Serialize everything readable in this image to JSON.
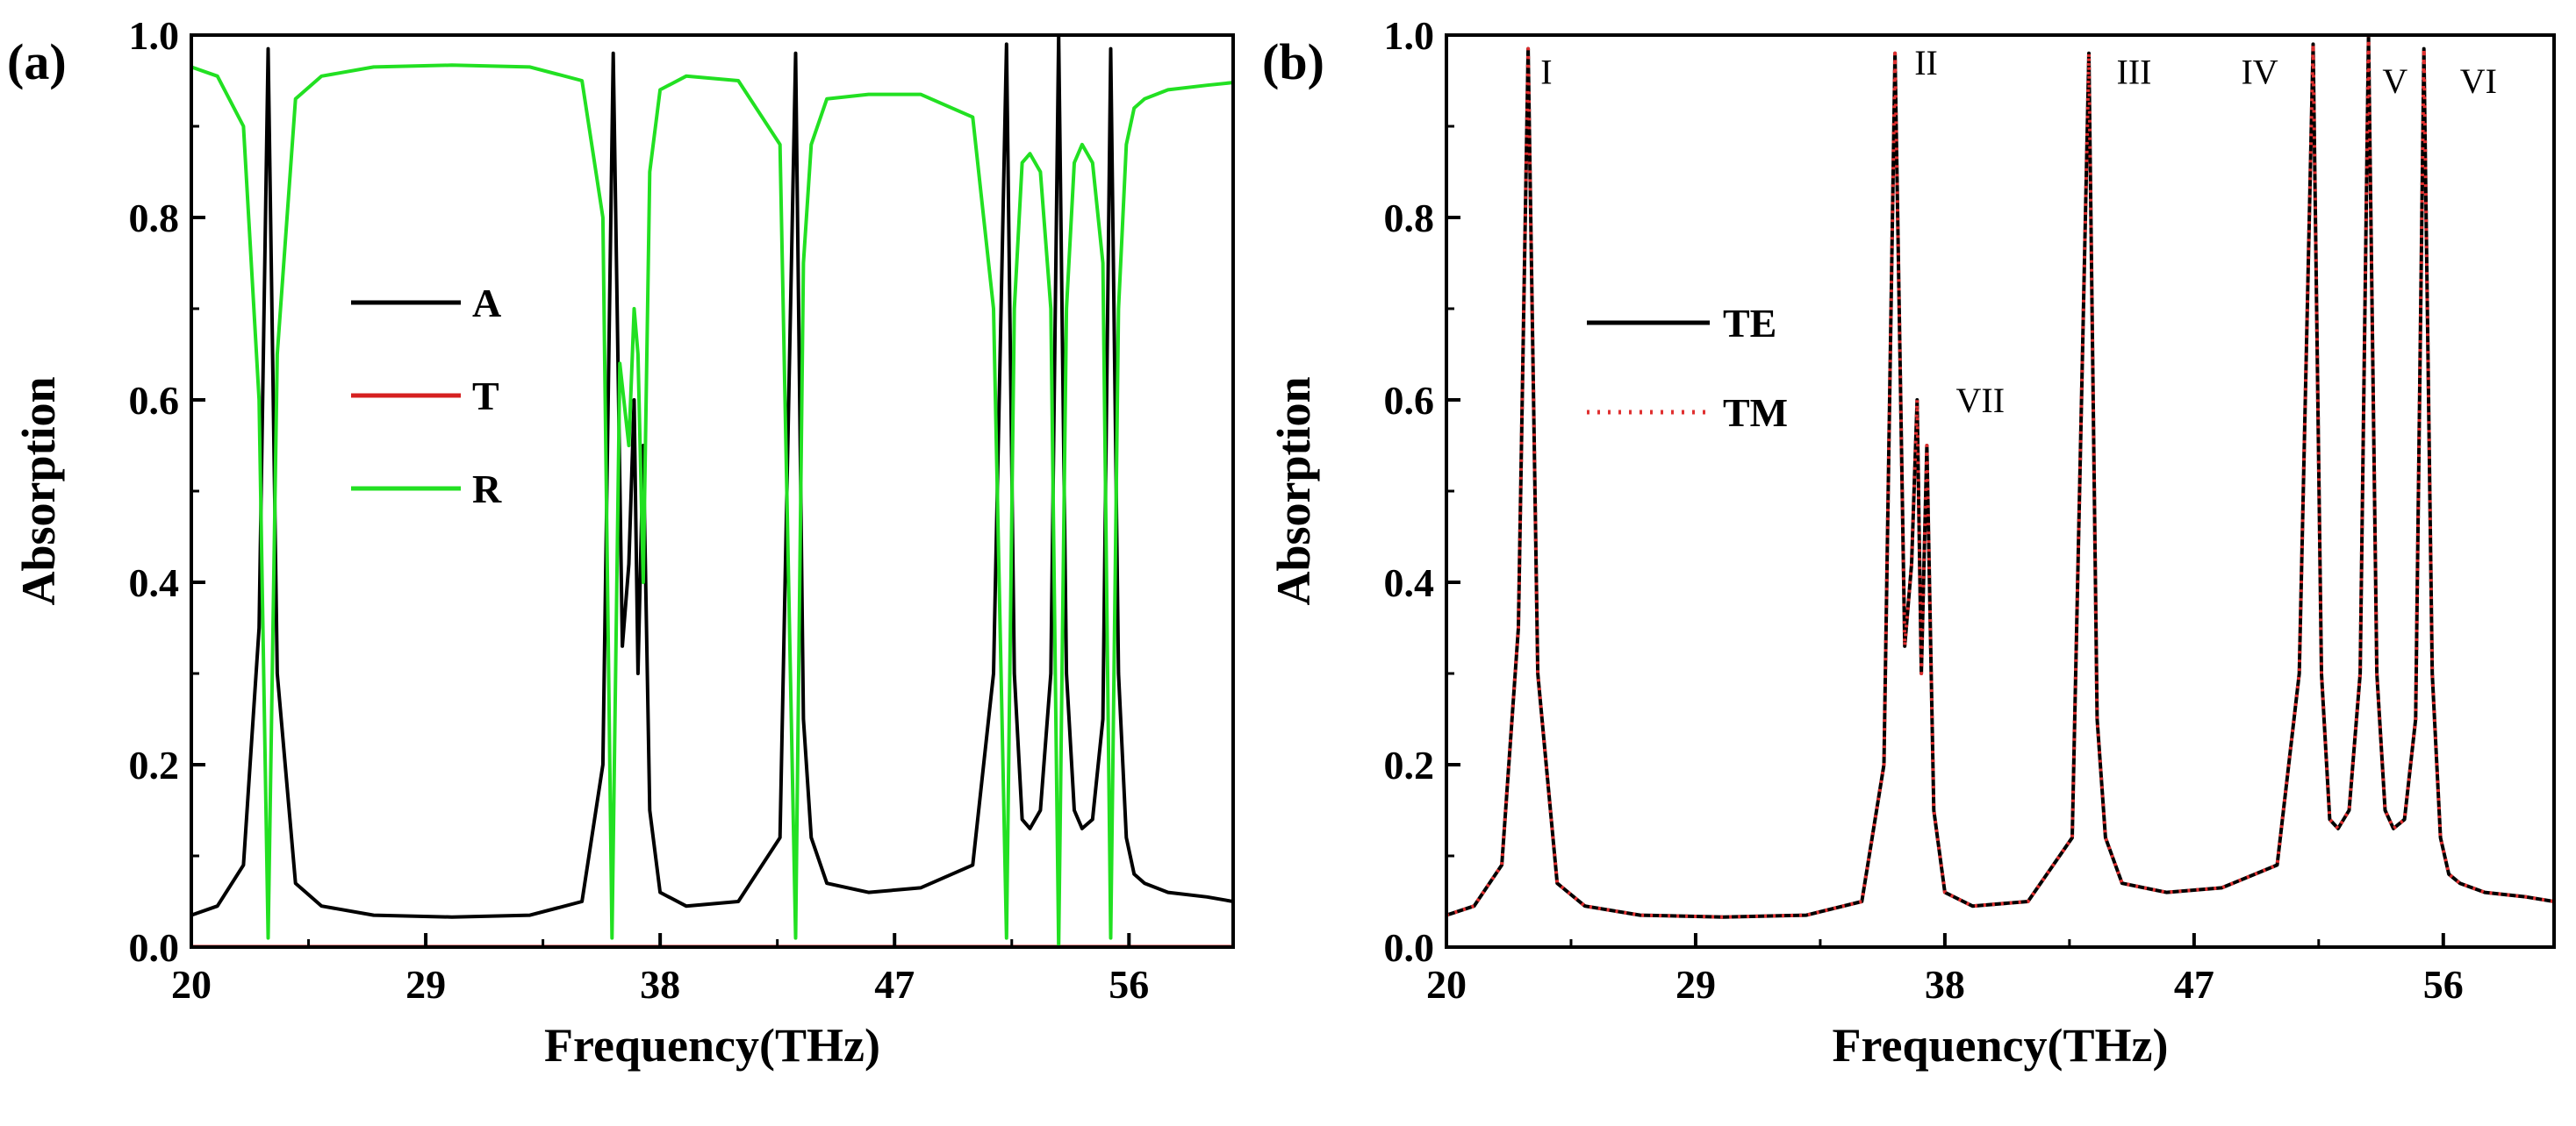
{
  "chart_data": [
    {
      "panel": "(a)",
      "type": "line",
      "xlabel": "Frequency(THz)",
      "ylabel": "Absorption",
      "xlim": [
        20,
        60
      ],
      "ylim": [
        0,
        1
      ],
      "xticks": [
        20,
        29,
        38,
        47,
        56
      ],
      "yticks": [
        0.0,
        0.2,
        0.4,
        0.6,
        0.8,
        1.0
      ],
      "xtick_labels": [
        "20",
        "29",
        "38",
        "47",
        "56"
      ],
      "ytick_labels": [
        "0.0",
        "0.2",
        "0.4",
        "0.6",
        "0.8",
        "1.0"
      ],
      "legend": [
        {
          "name": "A",
          "color": "#000000"
        },
        {
          "name": "T",
          "color": "#d62020"
        },
        {
          "name": "R",
          "color": "#22e022"
        }
      ],
      "series": [
        {
          "name": "A",
          "color": "#000000",
          "style": "solid",
          "x": [
            20,
            21,
            22,
            22.6,
            22.95,
            23.3,
            24,
            25,
            27,
            30,
            33,
            35,
            35.8,
            36.2,
            36.55,
            36.8,
            37.0,
            37.15,
            37.35,
            37.6,
            38,
            39,
            41,
            42.6,
            43.2,
            43.5,
            43.8,
            44.4,
            46,
            48,
            50,
            50.8,
            51.3,
            51.6,
            51.9,
            52.2,
            52.6,
            53.0,
            53.3,
            53.6,
            53.9,
            54.2,
            54.6,
            55.0,
            55.3,
            55.6,
            55.9,
            56.2,
            56.6,
            57.5,
            59,
            60
          ],
          "y": [
            0.035,
            0.045,
            0.09,
            0.35,
            0.985,
            0.3,
            0.07,
            0.045,
            0.035,
            0.033,
            0.035,
            0.05,
            0.2,
            0.98,
            0.33,
            0.42,
            0.6,
            0.3,
            0.55,
            0.15,
            0.06,
            0.045,
            0.05,
            0.12,
            0.98,
            0.25,
            0.12,
            0.07,
            0.06,
            0.065,
            0.09,
            0.3,
            0.99,
            0.3,
            0.14,
            0.13,
            0.15,
            0.3,
            1.0,
            0.3,
            0.15,
            0.13,
            0.14,
            0.25,
            0.985,
            0.3,
            0.12,
            0.08,
            0.07,
            0.06,
            0.055,
            0.05
          ]
        },
        {
          "name": "T",
          "color": "#d62020",
          "style": "solid",
          "x": [
            20,
            60
          ],
          "y": [
            0.0,
            0.0
          ]
        },
        {
          "name": "R",
          "color": "#22e022",
          "style": "solid",
          "x": [
            20,
            21,
            22,
            22.6,
            22.95,
            23.3,
            24,
            25,
            27,
            30,
            33,
            35,
            35.8,
            36.15,
            36.45,
            36.8,
            37.0,
            37.15,
            37.35,
            37.6,
            38,
            39,
            41,
            42.6,
            43.2,
            43.5,
            43.8,
            44.4,
            46,
            48,
            50,
            50.8,
            51.3,
            51.6,
            51.9,
            52.2,
            52.6,
            53.0,
            53.3,
            53.6,
            53.9,
            54.2,
            54.6,
            55.0,
            55.3,
            55.6,
            55.9,
            56.2,
            56.6,
            57.5,
            59,
            60
          ],
          "y": [
            0.965,
            0.955,
            0.9,
            0.6,
            0.01,
            0.65,
            0.93,
            0.955,
            0.965,
            0.967,
            0.965,
            0.95,
            0.8,
            0.01,
            0.64,
            0.55,
            0.7,
            0.65,
            0.4,
            0.85,
            0.94,
            0.955,
            0.95,
            0.88,
            0.01,
            0.75,
            0.88,
            0.93,
            0.935,
            0.935,
            0.91,
            0.7,
            0.01,
            0.7,
            0.86,
            0.87,
            0.85,
            0.7,
            0.0,
            0.7,
            0.86,
            0.88,
            0.86,
            0.75,
            0.01,
            0.7,
            0.88,
            0.92,
            0.93,
            0.94,
            0.945,
            0.948
          ]
        }
      ]
    },
    {
      "panel": "(b)",
      "type": "line",
      "xlabel": "Frequency(THz)",
      "ylabel": "Absorption",
      "xlim": [
        20,
        60
      ],
      "ylim": [
        0,
        1
      ],
      "xticks": [
        20,
        29,
        38,
        47,
        56
      ],
      "yticks": [
        0.0,
        0.2,
        0.4,
        0.6,
        0.8,
        1.0
      ],
      "xtick_labels": [
        "20",
        "29",
        "38",
        "47",
        "56"
      ],
      "ytick_labels": [
        "0.0",
        "0.2",
        "0.4",
        "0.6",
        "0.8",
        "1.0"
      ],
      "legend": [
        {
          "name": "TE",
          "color": "#000000",
          "style": "solid"
        },
        {
          "name": "TM",
          "color": "#e03030",
          "style": "dotted"
        }
      ],
      "annotations": [
        {
          "text": "I",
          "x": 23.4,
          "y": 0.96
        },
        {
          "text": "II",
          "x": 36.9,
          "y": 0.97
        },
        {
          "text": "III",
          "x": 44.2,
          "y": 0.96
        },
        {
          "text": "IV",
          "x": 48.7,
          "y": 0.96
        },
        {
          "text": "V",
          "x": 53.8,
          "y": 0.95
        },
        {
          "text": "VI",
          "x": 56.6,
          "y": 0.95
        },
        {
          "text": "VII",
          "x": 38.4,
          "y": 0.6
        }
      ],
      "series": [
        {
          "name": "TE",
          "color": "#000000",
          "style": "solid",
          "x": [
            20,
            21,
            22,
            22.6,
            22.95,
            23.3,
            24,
            25,
            27,
            30,
            33,
            35,
            35.8,
            36.2,
            36.55,
            36.8,
            37.0,
            37.15,
            37.35,
            37.6,
            38,
            39,
            41,
            42.6,
            43.2,
            43.5,
            43.8,
            44.4,
            46,
            48,
            50,
            50.8,
            51.3,
            51.6,
            51.9,
            52.2,
            52.6,
            53.0,
            53.3,
            53.6,
            53.9,
            54.2,
            54.6,
            55.0,
            55.3,
            55.6,
            55.9,
            56.2,
            56.6,
            57.5,
            59,
            60
          ],
          "y": [
            0.035,
            0.045,
            0.09,
            0.35,
            0.985,
            0.3,
            0.07,
            0.045,
            0.035,
            0.033,
            0.035,
            0.05,
            0.2,
            0.98,
            0.33,
            0.42,
            0.6,
            0.3,
            0.55,
            0.15,
            0.06,
            0.045,
            0.05,
            0.12,
            0.98,
            0.25,
            0.12,
            0.07,
            0.06,
            0.065,
            0.09,
            0.3,
            0.99,
            0.3,
            0.14,
            0.13,
            0.15,
            0.3,
            1.0,
            0.3,
            0.15,
            0.13,
            0.14,
            0.25,
            0.985,
            0.3,
            0.12,
            0.08,
            0.07,
            0.06,
            0.055,
            0.05
          ]
        },
        {
          "name": "TM",
          "color": "#e03030",
          "style": "dotted",
          "x": [
            20,
            21,
            22,
            22.6,
            22.95,
            23.3,
            24,
            25,
            27,
            30,
            33,
            35,
            35.8,
            36.2,
            36.55,
            36.8,
            37.0,
            37.15,
            37.35,
            37.6,
            38,
            39,
            41,
            42.6,
            43.2,
            43.5,
            43.8,
            44.4,
            46,
            48,
            50,
            50.8,
            51.3,
            51.6,
            51.9,
            52.2,
            52.6,
            53.0,
            53.3,
            53.6,
            53.9,
            54.2,
            54.6,
            55.0,
            55.3,
            55.6,
            55.9,
            56.2,
            56.6,
            57.5,
            59,
            60
          ],
          "y": [
            0.035,
            0.045,
            0.09,
            0.35,
            0.985,
            0.3,
            0.07,
            0.045,
            0.035,
            0.033,
            0.035,
            0.05,
            0.2,
            0.98,
            0.33,
            0.42,
            0.6,
            0.3,
            0.55,
            0.15,
            0.06,
            0.045,
            0.05,
            0.12,
            0.98,
            0.25,
            0.12,
            0.07,
            0.06,
            0.065,
            0.09,
            0.3,
            0.99,
            0.3,
            0.14,
            0.13,
            0.15,
            0.3,
            1.0,
            0.3,
            0.15,
            0.13,
            0.14,
            0.25,
            0.985,
            0.3,
            0.12,
            0.08,
            0.07,
            0.06,
            0.055,
            0.05
          ]
        }
      ]
    }
  ]
}
